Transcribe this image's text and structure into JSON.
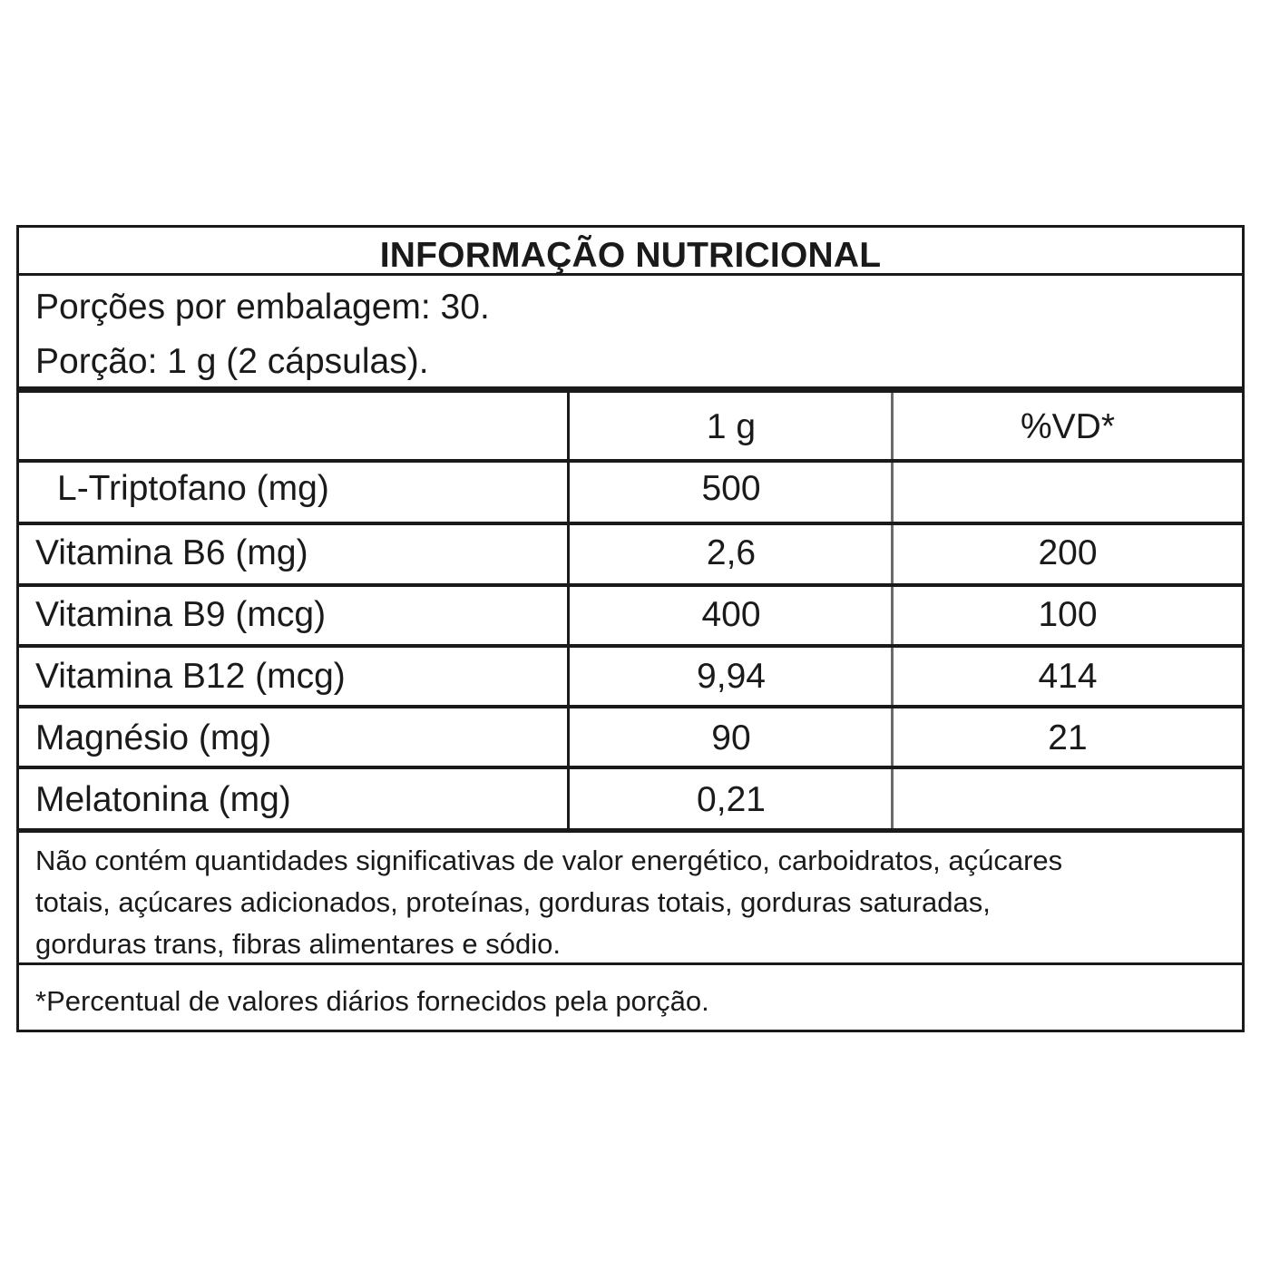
{
  "table": {
    "title": "INFORMAÇÃO NUTRICIONAL",
    "servings_per_package": "Porções por embalagem: 30.",
    "serving_size": "Porção: 1 g (2 cápsulas).",
    "columns": [
      "",
      "1 g",
      "%VD*"
    ],
    "rows": [
      {
        "name": "L-Triptofano (mg)",
        "amount": "500",
        "dv": ""
      },
      {
        "name": "Vitamina B6 (mg)",
        "amount": "2,6",
        "dv": "200"
      },
      {
        "name": "Vitamina B9 (mcg)",
        "amount": "400",
        "dv": "100"
      },
      {
        "name": "Vitamina B12 (mcg)",
        "amount": "9,94",
        "dv": "414"
      },
      {
        "name": "Magnésio (mg)",
        "amount": "90",
        "dv": "21"
      },
      {
        "name": "Melatonina (mg)",
        "amount": "0,21",
        "dv": ""
      }
    ],
    "notice_lines": [
      "Não contém quantidades significativas de valor energético, carboidratos, açúcares",
      "totais, açúcares adicionados, proteínas, gorduras totais, gorduras saturadas,",
      "gorduras trans, fibras alimentares e sódio."
    ],
    "footnote": "*Percentual de valores diários fornecidos pela porção."
  }
}
